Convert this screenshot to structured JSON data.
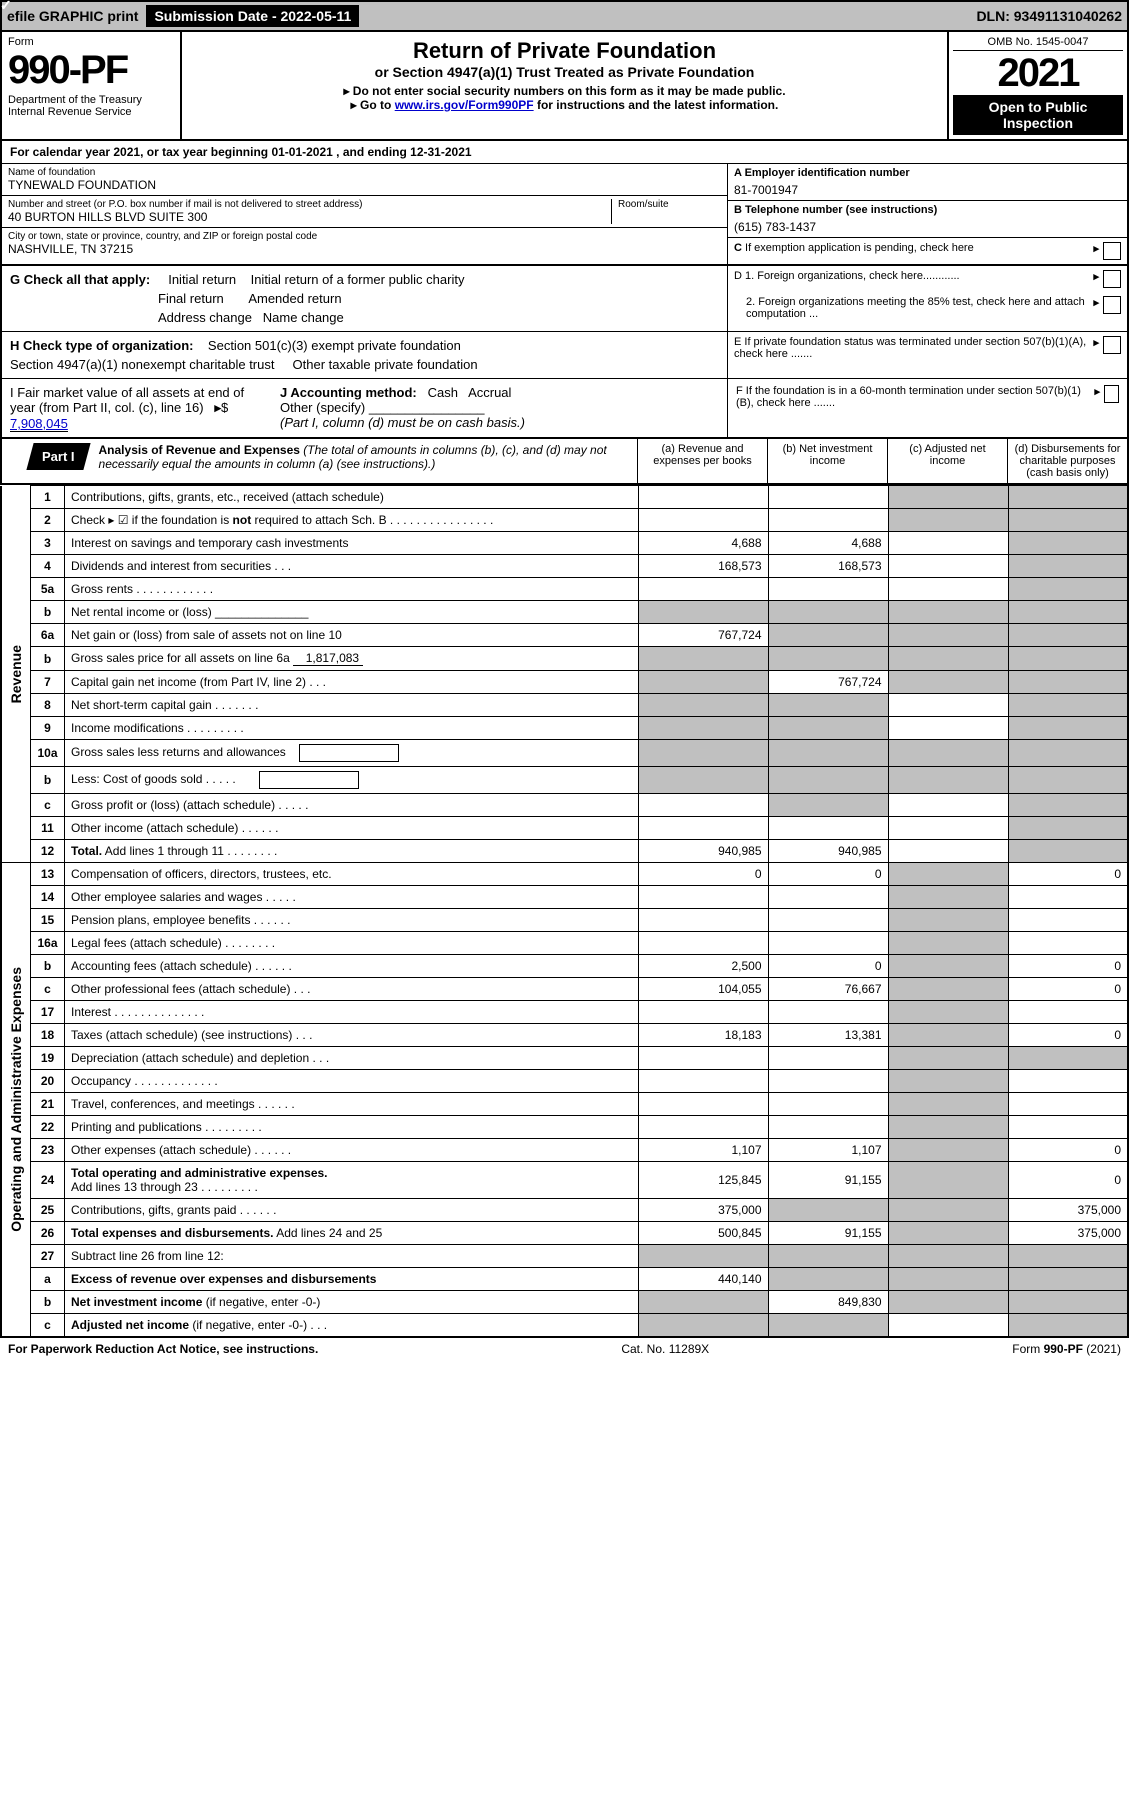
{
  "colors": {
    "black": "#000000",
    "white": "#ffffff",
    "grey": "#c0c0c0",
    "link": "#0000cc",
    "check_bg": "#4a7db8"
  },
  "topbar": {
    "efile": "efile GRAPHIC print",
    "sub_date_label": "Submission Date - 2022-05-11",
    "dln": "DLN: 93491131040262"
  },
  "header": {
    "form_word": "Form",
    "form_no": "990-PF",
    "dept": "Department of the Treasury",
    "irs": "Internal Revenue Service",
    "title": "Return of Private Foundation",
    "subtitle": "or Section 4947(a)(1) Trust Treated as Private Foundation",
    "instr1": "▸ Do not enter social security numbers on this form as it may be made public.",
    "instr2_pre": "▸ Go to ",
    "instr2_link": "www.irs.gov/Form990PF",
    "instr2_post": " for instructions and the latest information.",
    "omb": "OMB No. 1545-0047",
    "year": "2021",
    "otp": "Open to Public Inspection"
  },
  "cal_year": "For calendar year 2021, or tax year beginning 01-01-2021              , and ending 12-31-2021",
  "info": {
    "name_label": "Name of foundation",
    "name_val": "TYNEWALD FOUNDATION",
    "addr_label": "Number and street (or P.O. box number if mail is not delivered to street address)",
    "addr_val": "40 BURTON HILLS BLVD SUITE 300",
    "room_label": "Room/suite",
    "city_label": "City or town, state or province, country, and ZIP or foreign postal code",
    "city_val": "NASHVILLE, TN  37215",
    "a_label": "A Employer identification number",
    "a_val": "81-7001947",
    "b_label": "B Telephone number (see instructions)",
    "b_val": "(615) 783-1437",
    "c_label": "C If exemption application is pending, check here"
  },
  "g": {
    "label": "G Check all that apply:",
    "opts": [
      "Initial return",
      "Initial return of a former public charity",
      "Final return",
      "Amended return",
      "Address change",
      "Name change"
    ]
  },
  "h": {
    "label": "H Check type of organization:",
    "opt1": "Section 501(c)(3) exempt private foundation",
    "opt2": "Section 4947(a)(1) nonexempt charitable trust",
    "opt3": "Other taxable private foundation"
  },
  "d": {
    "d1": "D 1. Foreign organizations, check here............",
    "d2": "2. Foreign organizations meeting the 85% test, check here and attach computation ...",
    "e": "E   If private foundation status was terminated under section 507(b)(1)(A), check here .......",
    "f": "F   If the foundation is in a 60-month termination under section 507(b)(1)(B), check here ......."
  },
  "i": {
    "label_i": "I Fair market value of all assets at end of year (from Part II, col. (c), line 16)",
    "fmv": "7,908,045",
    "label_j": "J Accounting method:",
    "cash": "Cash",
    "accrual": "Accrual",
    "other": "Other (specify)",
    "note": "(Part I, column (d) must be on cash basis.)"
  },
  "part1": {
    "badge": "Part I",
    "title": "Analysis of Revenue and Expenses",
    "desc": " (The total of amounts in columns (b), (c), and (d) may not necessarily equal the amounts in column (a) (see instructions).)",
    "col_a": "(a)    Revenue and expenses per books",
    "col_b": "(b)    Net investment income",
    "col_c": "(c)   Adjusted net income",
    "col_d": "(d)   Disbursements for charitable purposes (cash basis only)"
  },
  "sidelabels": {
    "rev": "Revenue",
    "exp": "Operating and Administrative Expenses"
  },
  "rows": [
    {
      "n": "1",
      "d": "Contributions, gifts, grants, etc., received (attach schedule)",
      "a": "",
      "b": "",
      "c": "g",
      "dd": "g"
    },
    {
      "n": "2",
      "d": "Check ▸ ☑ if the foundation is <b>not</b> required to attach Sch. B   .   .   .   .   .   .   .   .   .   .   .   .   .   .   .   .",
      "a": "",
      "b": "",
      "c": "g",
      "dd": "g"
    },
    {
      "n": "3",
      "d": "Interest on savings and temporary cash investments",
      "a": "4,688",
      "b": "4,688",
      "c": "",
      "dd": "g"
    },
    {
      "n": "4",
      "d": "Dividends and interest from securities   .   .   .",
      "a": "168,573",
      "b": "168,573",
      "c": "",
      "dd": "g"
    },
    {
      "n": "5a",
      "d": "Gross rents   .   .   .   .   .   .   .   .   .   .   .   .",
      "a": "",
      "b": "",
      "c": "",
      "dd": "g"
    },
    {
      "n": "b",
      "d": "Net rental income or (loss)  ______________",
      "a": "g",
      "b": "g",
      "c": "g",
      "dd": "g"
    },
    {
      "n": "6a",
      "d": "Net gain or (loss) from sale of assets not on line 10",
      "a": "767,724",
      "b": "g",
      "c": "g",
      "dd": "g"
    },
    {
      "n": "b",
      "d": "Gross sales price for all assets on line 6a <span class='inline-underline'>1,817,083</span>",
      "a": "g",
      "b": "g",
      "c": "g",
      "dd": "g"
    },
    {
      "n": "7",
      "d": "Capital gain net income (from Part IV, line 2)   .   .   .",
      "a": "g",
      "b": "767,724",
      "c": "g",
      "dd": "g"
    },
    {
      "n": "8",
      "d": "Net short-term capital gain   .   .   .   .   .   .   .",
      "a": "g",
      "b": "g",
      "c": "",
      "dd": "g"
    },
    {
      "n": "9",
      "d": "Income modifications   .   .   .   .   .   .   .   .   .",
      "a": "g",
      "b": "g",
      "c": "",
      "dd": "g"
    },
    {
      "n": "10a",
      "d": "Gross sales less returns and allowances &nbsp;&nbsp; <span class='sub-box'></span>",
      "a": "g",
      "b": "g",
      "c": "g",
      "dd": "g"
    },
    {
      "n": "b",
      "d": "Less: Cost of goods sold   .   .   .   .   . &nbsp;&nbsp;&nbsp;&nbsp;&nbsp; <span class='sub-box'></span>",
      "a": "g",
      "b": "g",
      "c": "g",
      "dd": "g"
    },
    {
      "n": "c",
      "d": "Gross profit or (loss) (attach schedule)   .   .   .   .   .",
      "a": "",
      "b": "g",
      "c": "",
      "dd": "g"
    },
    {
      "n": "11",
      "d": "Other income (attach schedule)   .   .   .   .   .   .",
      "a": "",
      "b": "",
      "c": "",
      "dd": "g"
    },
    {
      "n": "12",
      "d": "<b>Total.</b> Add lines 1 through 11   .   .   .   .   .   .   .   .",
      "a": "940,985",
      "b": "940,985",
      "c": "",
      "dd": "g",
      "bold": true
    },
    {
      "n": "13",
      "d": "Compensation of officers, directors, trustees, etc.",
      "a": "0",
      "b": "0",
      "c": "g",
      "dd": "0"
    },
    {
      "n": "14",
      "d": "Other employee salaries and wages   .   .   .   .   .",
      "a": "",
      "b": "",
      "c": "g",
      "dd": ""
    },
    {
      "n": "15",
      "d": "Pension plans, employee benefits   .   .   .   .   .   .",
      "a": "",
      "b": "",
      "c": "g",
      "dd": ""
    },
    {
      "n": "16a",
      "d": "Legal fees (attach schedule)   .   .   .   .   .   .   .   .",
      "a": "",
      "b": "",
      "c": "g",
      "dd": ""
    },
    {
      "n": "b",
      "d": "Accounting fees (attach schedule)   .   .   .   .   .   .",
      "a": "2,500",
      "b": "0",
      "c": "g",
      "dd": "0"
    },
    {
      "n": "c",
      "d": "Other professional fees (attach schedule)   .   .   .",
      "a": "104,055",
      "b": "76,667",
      "c": "g",
      "dd": "0"
    },
    {
      "n": "17",
      "d": "Interest   .   .   .   .   .   .   .   .   .   .   .   .   .   .",
      "a": "",
      "b": "",
      "c": "g",
      "dd": ""
    },
    {
      "n": "18",
      "d": "Taxes (attach schedule) (see instructions)   .   .   .",
      "a": "18,183",
      "b": "13,381",
      "c": "g",
      "dd": "0"
    },
    {
      "n": "19",
      "d": "Depreciation (attach schedule) and depletion   .   .   .",
      "a": "",
      "b": "",
      "c": "g",
      "dd": "g"
    },
    {
      "n": "20",
      "d": "Occupancy   .   .   .   .   .   .   .   .   .   .   .   .   .",
      "a": "",
      "b": "",
      "c": "g",
      "dd": ""
    },
    {
      "n": "21",
      "d": "Travel, conferences, and meetings   .   .   .   .   .   .",
      "a": "",
      "b": "",
      "c": "g",
      "dd": ""
    },
    {
      "n": "22",
      "d": "Printing and publications   .   .   .   .   .   .   .   .   .",
      "a": "",
      "b": "",
      "c": "g",
      "dd": ""
    },
    {
      "n": "23",
      "d": "Other expenses (attach schedule)   .   .   .   .   .   .",
      "a": "1,107",
      "b": "1,107",
      "c": "g",
      "dd": "0"
    },
    {
      "n": "24",
      "d": "<b>Total operating and administrative expenses.</b><br>Add lines 13 through 23   .   .   .   .   .   .   .   .   .",
      "a": "125,845",
      "b": "91,155",
      "c": "g",
      "dd": "0",
      "bold": true
    },
    {
      "n": "25",
      "d": "Contributions, gifts, grants paid   .   .   .   .   .   .",
      "a": "375,000",
      "b": "g",
      "c": "g",
      "dd": "375,000"
    },
    {
      "n": "26",
      "d": "<b>Total expenses and disbursements.</b> Add lines 24 and 25",
      "a": "500,845",
      "b": "91,155",
      "c": "g",
      "dd": "375,000",
      "bold": true
    },
    {
      "n": "27",
      "d": "Subtract line 26 from line 12:",
      "a": "g",
      "b": "g",
      "c": "g",
      "dd": "g"
    },
    {
      "n": "a",
      "d": "<b>Excess of revenue over expenses and disbursements</b>",
      "a": "440,140",
      "b": "g",
      "c": "g",
      "dd": "g"
    },
    {
      "n": "b",
      "d": "<b>Net investment income</b> (if negative, enter -0-)",
      "a": "g",
      "b": "849,830",
      "c": "g",
      "dd": "g"
    },
    {
      "n": "c",
      "d": "<b>Adjusted net income</b> (if negative, enter -0-)   .   .   .",
      "a": "g",
      "b": "g",
      "c": "",
      "dd": "g"
    }
  ],
  "footer": {
    "pra": "For Paperwork Reduction Act Notice, see instructions.",
    "cat": "Cat. No. 11289X",
    "form": "Form 990-PF (2021)"
  }
}
